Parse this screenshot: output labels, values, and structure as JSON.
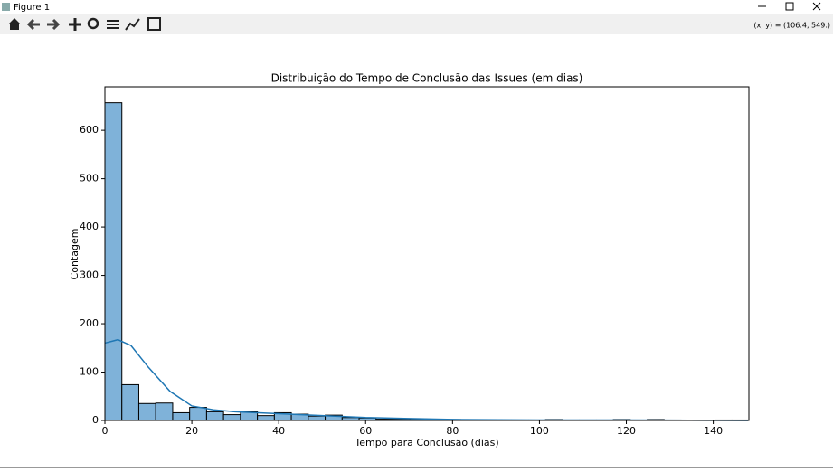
{
  "window": {
    "title": "Figure 1",
    "coords": "(x, y) = (106.4, 549.)"
  },
  "chart_data": {
    "type": "histogram",
    "title": "Distribuição do Tempo de Conclusão das Issues (em dias)",
    "x_label": "Tempo para Conclusão (dias)",
    "y_label": "Contagem",
    "bins": [
      0,
      3.9,
      7.8,
      11.7,
      15.6,
      19.5,
      23.4,
      27.3,
      31.2,
      35.1,
      39,
      42.9,
      46.8,
      50.7,
      54.6,
      58.5,
      62.4,
      66.3,
      70.2,
      74.1,
      78,
      81.9,
      85.8,
      89.7,
      93.6,
      97.5,
      101.4,
      105.3,
      109.2,
      113.1,
      117,
      120.9,
      124.8,
      128.7,
      132.6,
      136.5,
      140.4,
      144.3,
      148.2
    ],
    "counts": [
      657,
      74,
      35,
      36,
      16,
      27,
      18,
      12,
      18,
      10,
      16,
      13,
      9,
      11,
      6,
      5,
      3,
      3,
      3,
      2,
      2,
      1,
      1,
      1,
      1,
      1,
      2,
      1,
      1,
      1,
      2,
      1,
      2,
      1,
      0,
      0,
      1,
      1
    ],
    "color": "#7fb2d9",
    "kde": {
      "color": "#1f77b4",
      "x": [
        0,
        3,
        6,
        10,
        15,
        20,
        25,
        30,
        40,
        50,
        60,
        70,
        80,
        100,
        120,
        148
      ],
      "values": [
        160,
        167,
        155,
        110,
        60,
        30,
        22,
        18,
        14,
        10,
        6,
        4,
        2,
        1,
        1,
        0
      ]
    },
    "xlim": [
      0,
      148.2
    ],
    "xticks": [
      0,
      20,
      40,
      60,
      80,
      100,
      120,
      140
    ],
    "ylim": [
      0,
      690
    ],
    "yticks": [
      0,
      100,
      200,
      300,
      400,
      500,
      600
    ]
  }
}
